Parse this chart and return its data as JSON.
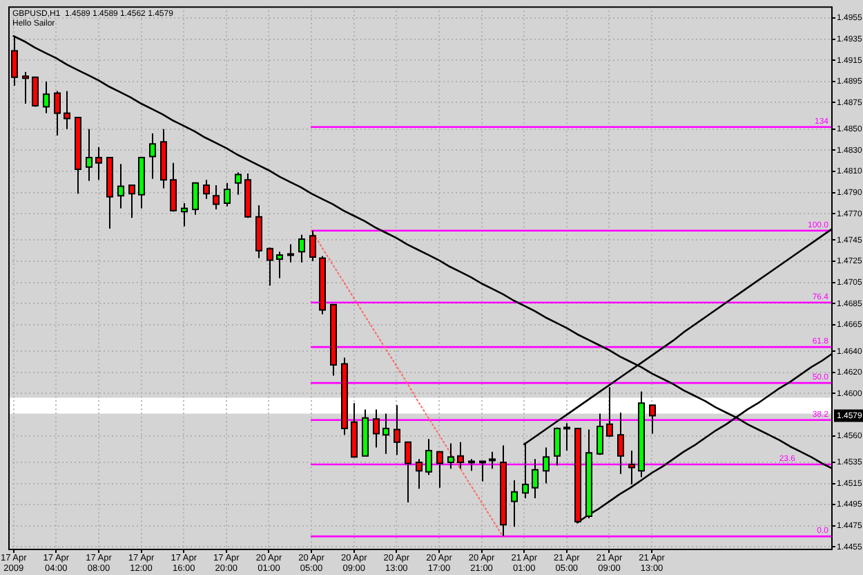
{
  "chart_data": {
    "type": "candlestick",
    "title": "GBPUSD,H1  1.4589 1.4589 1.4562 1.4579",
    "subtitle": "Hello Sailor",
    "categories": [
      "17 Apr 2009",
      null,
      null,
      null,
      "17 Apr 04:00",
      null,
      null,
      null,
      "17 Apr 08:00",
      null,
      null,
      null,
      "17 Apr 12:00",
      null,
      null,
      null,
      "17 Apr 16:00",
      null,
      null,
      null,
      "17 Apr 20:00",
      null,
      null,
      null,
      "20 Apr 01:00",
      null,
      null,
      null,
      "20 Apr 05:00",
      null,
      null,
      null,
      "20 Apr 09:00",
      null,
      null,
      null,
      "20 Apr 13:00",
      null,
      null,
      null,
      "20 Apr 17:00",
      null,
      null,
      null,
      "20 Apr 21:00",
      null,
      null,
      null,
      "21 Apr 01:00",
      null,
      null,
      null,
      "21 Apr 05:00",
      null,
      null,
      null,
      "21 Apr 09:00",
      null,
      null,
      null,
      "21 Apr 13:00",
      null,
      null,
      null,
      null,
      null,
      null,
      null,
      null,
      null,
      null,
      null,
      null,
      null,
      null,
      null,
      null,
      null
    ],
    "ylim": [
      1.4452,
      1.4966
    ],
    "yticks": [
      1.4455,
      1.4475,
      1.4495,
      1.4515,
      1.4535,
      {
        "value": 1.456,
        "label": "1.4560"
      },
      {
        "value": 1.46,
        "label": "1.4600"
      },
      {
        "value": 1.462,
        "label": "1.4620"
      },
      {
        "value": 1.464,
        "label": "1.4640"
      },
      1.4665,
      1.4685,
      1.4705,
      1.4725,
      1.4745,
      {
        "value": 1.477,
        "label": "1.4770"
      },
      {
        "value": 1.479,
        "label": "1.4790"
      },
      {
        "value": 1.481,
        "label": "1.4810"
      },
      {
        "value": 1.483,
        "label": "1.4830"
      },
      {
        "value": 1.485,
        "label": "1.4850"
      },
      1.4875,
      1.4895,
      1.4915,
      1.4935,
      1.4955
    ],
    "grid": true,
    "legend": false,
    "bands": [
      {
        "axis": "y",
        "from": 1.4581,
        "to": 1.4596,
        "color": "#ffffff"
      }
    ],
    "annotations": [
      {
        "text": "1.4579",
        "y": 1.4579
      }
    ],
    "series": [
      {
        "ohlc": [
          [
            1.4924,
            1.4938,
            1.4891,
            1.4899
          ],
          [
            1.49,
            1.4904,
            1.4874,
            1.4898
          ],
          [
            1.4899,
            1.4899,
            1.4871,
            1.4872
          ],
          [
            1.4871,
            1.4895,
            1.4865,
            1.4883
          ],
          [
            1.4884,
            1.4886,
            1.4844,
            1.4865
          ],
          [
            1.4865,
            1.4886,
            1.485,
            1.486
          ],
          [
            1.4861,
            1.4861,
            1.4789,
            1.4812
          ],
          [
            1.4814,
            1.485,
            1.4801,
            1.4823
          ],
          [
            1.4823,
            1.4833,
            1.4802,
            1.4818
          ],
          [
            1.4823,
            1.4823,
            1.4756,
            1.4786
          ],
          [
            1.4787,
            1.4817,
            1.4775,
            1.4796
          ],
          [
            1.4797,
            1.4797,
            1.4766,
            1.4789
          ],
          [
            1.4788,
            1.4823,
            1.4775,
            1.4823
          ],
          [
            1.4824,
            1.4846,
            1.4803,
            1.4836
          ],
          [
            1.4838,
            1.485,
            1.4794,
            1.4802
          ],
          [
            1.4802,
            1.4818,
            1.4772,
            1.4773
          ],
          [
            1.4772,
            1.478,
            1.4758,
            1.4775
          ],
          [
            1.4774,
            1.4799,
            1.4769,
            1.4799
          ],
          [
            1.4797,
            1.4802,
            1.4784,
            1.4789
          ],
          [
            1.4787,
            1.4797,
            1.4774,
            1.4779
          ],
          [
            1.478,
            1.4799,
            1.4777,
            1.4793
          ],
          [
            1.4799,
            1.4809,
            1.4788,
            1.4807
          ],
          [
            1.4802,
            1.4808,
            1.4766,
            1.4767
          ],
          [
            1.4767,
            1.4778,
            1.4728,
            1.4735
          ],
          [
            1.4737,
            1.4738,
            1.4702,
            1.4726
          ],
          [
            1.4727,
            1.4734,
            1.4709,
            1.4731
          ],
          [
            1.4732,
            1.4741,
            1.4724,
            1.4731
          ],
          [
            1.4734,
            1.475,
            1.4724,
            1.4746
          ],
          [
            1.4749,
            1.4754,
            1.4725,
            1.4729
          ],
          [
            1.4728,
            1.473,
            1.4675,
            1.4679
          ],
          [
            1.4684,
            1.4684,
            1.4617,
            1.4627
          ],
          [
            1.4628,
            1.4634,
            1.4561,
            1.4567
          ],
          [
            1.4573,
            1.4591,
            1.454,
            1.454
          ],
          [
            1.4541,
            1.4585,
            1.4541,
            1.4577
          ],
          [
            1.4576,
            1.4585,
            1.4549,
            1.4562
          ],
          [
            1.4561,
            1.4581,
            1.4543,
            1.4567
          ],
          [
            1.4566,
            1.4589,
            1.4542,
            1.4554
          ],
          [
            1.4554,
            1.4554,
            1.4497,
            1.4534
          ],
          [
            1.4535,
            1.4538,
            1.451,
            1.4527
          ],
          [
            1.4526,
            1.4557,
            1.4523,
            1.4546
          ],
          [
            1.4545,
            1.4545,
            1.4511,
            1.4534
          ],
          [
            1.4535,
            1.4553,
            1.4529,
            1.454
          ],
          [
            1.4541,
            1.4554,
            1.4529,
            1.4535
          ],
          [
            1.4536,
            1.4538,
            1.4527,
            1.4535
          ],
          [
            1.4535,
            1.4536,
            1.4517,
            1.4536
          ],
          [
            1.4538,
            1.4545,
            1.4529,
            1.4537
          ],
          [
            1.4535,
            1.4551,
            1.4465,
            1.4476
          ],
          [
            1.4498,
            1.4518,
            1.4474,
            1.4507
          ],
          [
            1.4506,
            1.4552,
            1.4501,
            1.4514
          ],
          [
            1.4511,
            1.4538,
            1.4501,
            1.4528
          ],
          [
            1.4527,
            1.4549,
            1.4515,
            1.454
          ],
          [
            1.4541,
            1.4568,
            1.4532,
            1.4567
          ],
          [
            1.4568,
            1.4572,
            1.4546,
            1.4567
          ],
          [
            1.4567,
            1.4567,
            1.4478,
            1.4479
          ],
          [
            1.4484,
            1.4566,
            1.4482,
            1.4544
          ],
          [
            1.4543,
            1.4581,
            1.4542,
            1.4569
          ],
          [
            1.4571,
            1.4606,
            1.4559,
            1.456
          ],
          [
            1.4561,
            1.4582,
            1.4524,
            1.4541
          ],
          [
            1.4533,
            1.4546,
            1.4514,
            1.453
          ],
          [
            1.4527,
            1.4602,
            1.4521,
            1.4591
          ],
          [
            1.4589,
            1.4589,
            1.4562,
            1.4579
          ],
          null,
          null,
          null,
          null,
          null,
          null,
          null,
          null,
          null,
          null,
          null,
          null,
          null,
          null,
          null,
          null,
          null
        ],
        "colors": [
          "#ff0000",
          "#ff0000",
          "#ff0000",
          "#00ff00",
          "#ff0000",
          "#ff0000",
          "#ff0000",
          "#00ff00",
          "#ff0000",
          "#ff0000",
          "#00ff00",
          "#ff0000",
          "#00ff00",
          "#00ff00",
          "#ff0000",
          "#ff0000",
          "#00ff00",
          "#00ff00",
          "#ff0000",
          "#ff0000",
          "#00ff00",
          "#00ff00",
          "#ff0000",
          "#ff0000",
          "#ff0000",
          "#00ff00",
          "#ff0000",
          "#00ff00",
          "#ff0000",
          "#ff0000",
          "#ff0000",
          "#ff0000",
          "#ff0000",
          "#00ff00",
          "#ff0000",
          "#00ff00",
          "#ff0000",
          "#ff0000",
          "#ff0000",
          "#00ff00",
          "#ff0000",
          "#00ff00",
          "#ff0000",
          "#ff0000",
          "#00ff00",
          "#ff0000",
          "#ff0000",
          "#00ff00",
          "#00ff00",
          "#00ff00",
          "#00ff00",
          "#00ff00",
          "#ff0000",
          "#ff0000",
          "#00ff00",
          "#00ff00",
          "#ff0000",
          "#ff0000",
          "#ff0000",
          "#00ff00",
          "#ff0000",
          null,
          null,
          null,
          null,
          null,
          null,
          null,
          null,
          null,
          null,
          null,
          null,
          null,
          null,
          null,
          null,
          null
        ]
      },
      {
        "type": "line",
        "color": "#000000",
        "values": [
          1.4938,
          1.4933,
          1.4927,
          1.4922,
          1.4917,
          1.4911,
          1.4906,
          1.4901,
          1.4896,
          1.489,
          1.4885,
          1.488,
          1.4874,
          1.4869,
          1.4864,
          1.4858,
          1.4853,
          1.4848,
          1.4842,
          1.4837,
          1.4832,
          1.4826,
          1.4821,
          1.4816,
          1.4811,
          1.4805,
          1.48,
          1.4795,
          1.4789,
          1.4784,
          1.4779,
          1.4773,
          1.4768,
          1.4763,
          1.4757,
          1.4752,
          1.4747,
          1.4741,
          1.4736,
          1.4731,
          1.4726,
          1.472,
          1.4715,
          1.471,
          1.4704,
          1.4699,
          1.4694,
          1.4688,
          1.4683,
          1.4678,
          1.4672,
          1.4667,
          1.4662,
          1.4656,
          1.4651,
          1.4646,
          1.4641,
          1.4635,
          1.463,
          1.4625,
          1.4619,
          1.4614,
          1.4609,
          1.4603,
          1.4598,
          1.4593,
          1.4587,
          1.4582,
          1.4577,
          1.4571,
          1.4566,
          1.4561,
          1.4556,
          1.455,
          1.4545,
          1.454,
          1.4534,
          1.4529
        ]
      },
      {
        "type": "line",
        "color": "#000000",
        "values": [
          null,
          null,
          null,
          null,
          null,
          null,
          null,
          null,
          null,
          null,
          null,
          null,
          null,
          null,
          null,
          null,
          null,
          null,
          null,
          null,
          null,
          null,
          null,
          null,
          null,
          null,
          null,
          null,
          null,
          null,
          null,
          null,
          null,
          null,
          null,
          null,
          null,
          null,
          null,
          null,
          null,
          null,
          null,
          null,
          null,
          null,
          null,
          null,
          1.4552,
          1.4559,
          1.4566,
          1.4573,
          1.458,
          1.4587,
          1.4594,
          1.4601,
          1.4608,
          1.4615,
          1.4622,
          1.4629,
          1.4636,
          1.4643,
          1.465,
          1.4658,
          1.4665,
          1.4672,
          1.4679,
          1.4686,
          1.4693,
          1.47,
          1.4707,
          1.4714,
          1.4721,
          1.4728,
          1.4735,
          1.4742,
          1.4749,
          1.4756
        ]
      },
      {
        "type": "line",
        "color": "#000000",
        "values": [
          null,
          null,
          null,
          null,
          null,
          null,
          null,
          null,
          null,
          null,
          null,
          null,
          null,
          null,
          null,
          null,
          null,
          null,
          null,
          null,
          null,
          null,
          null,
          null,
          null,
          null,
          null,
          null,
          null,
          null,
          null,
          null,
          null,
          null,
          null,
          null,
          null,
          null,
          null,
          null,
          null,
          null,
          null,
          null,
          null,
          null,
          null,
          null,
          null,
          null,
          null,
          null,
          null,
          1.4478,
          1.4485,
          1.4491,
          1.4498,
          1.4505,
          1.4511,
          1.4518,
          1.4525,
          1.4531,
          1.4538,
          1.4545,
          1.4551,
          1.4558,
          1.4565,
          1.4571,
          1.4578,
          1.4585,
          1.4591,
          1.4598,
          1.4605,
          1.4611,
          1.4618,
          1.4625,
          1.4631,
          1.4638
        ]
      },
      {
        "type": "line",
        "color": "#ff6666",
        "line_style": "dotted",
        "values": [
          null,
          null,
          null,
          null,
          null,
          null,
          null,
          null,
          null,
          null,
          null,
          null,
          null,
          null,
          null,
          null,
          null,
          null,
          null,
          null,
          null,
          null,
          null,
          null,
          null,
          null,
          null,
          null,
          1.4754,
          1.4738,
          1.4722,
          1.4706,
          1.469,
          1.4674,
          1.4658,
          1.4642,
          1.4626,
          1.461,
          1.4593,
          1.4577,
          1.4561,
          1.4545,
          1.4529,
          1.4513,
          1.4497,
          1.4481,
          1.4465,
          null,
          null,
          null,
          null,
          null,
          null,
          null,
          null,
          null,
          null,
          null,
          null,
          null,
          null,
          null,
          null,
          null,
          null,
          null,
          null,
          null,
          null,
          null,
          null,
          null,
          null,
          null,
          null,
          null,
          null,
          null
        ]
      },
      {
        "type": "line",
        "name": "0.0",
        "color": "#ff00ff",
        "values": [
          null,
          null,
          null,
          null,
          null,
          null,
          null,
          null,
          null,
          null,
          null,
          null,
          null,
          null,
          null,
          null,
          null,
          null,
          null,
          null,
          null,
          null,
          null,
          null,
          null,
          null,
          null,
          null,
          1.4465,
          1.4465,
          1.4465,
          1.4465,
          1.4465,
          1.4465,
          1.4465,
          1.4465,
          1.4465,
          1.4465,
          1.4465,
          1.4465,
          1.4465,
          1.4465,
          1.4465,
          1.4465,
          1.4465,
          1.4465,
          1.4465,
          1.4465,
          1.4465,
          1.4465,
          1.4465,
          1.4465,
          1.4465,
          1.4465,
          1.4465,
          1.4465,
          1.4465,
          1.4465,
          1.4465,
          1.4465,
          1.4465,
          1.4465,
          1.4465,
          1.4465,
          1.4465,
          1.4465,
          1.4465,
          1.4465,
          1.4465,
          1.4465,
          1.4465,
          1.4465,
          1.4465,
          1.4465,
          1.4465,
          1.4465,
          1.4465,
          1.4465
        ]
      },
      {
        "type": "line",
        "name": "23.6",
        "color": "#ff00ff",
        "values": [
          null,
          null,
          null,
          null,
          null,
          null,
          null,
          null,
          null,
          null,
          null,
          null,
          null,
          null,
          null,
          null,
          null,
          null,
          null,
          null,
          null,
          null,
          null,
          null,
          null,
          null,
          null,
          null,
          1.4533,
          1.4533,
          1.4533,
          1.4533,
          1.4533,
          1.4533,
          1.4533,
          1.4533,
          1.4533,
          1.4533,
          1.4533,
          1.4533,
          1.4533,
          1.4533,
          1.4533,
          1.4533,
          1.4533,
          1.4533,
          1.4533,
          1.4533,
          1.4533,
          1.4533,
          1.4533,
          1.4533,
          1.4533,
          1.4533,
          1.4533,
          1.4533,
          1.4533,
          1.4533,
          1.4533,
          1.4533,
          1.4533,
          1.4533,
          1.4533,
          1.4533,
          1.4533,
          1.4533,
          1.4533,
          1.4533,
          1.4533,
          1.4533,
          1.4533,
          1.4533,
          1.4533,
          1.4533,
          1.4533,
          1.4533,
          1.4533,
          1.4533
        ]
      },
      {
        "type": "line",
        "name": "38.2",
        "color": "#ff00ff",
        "values": [
          null,
          null,
          null,
          null,
          null,
          null,
          null,
          null,
          null,
          null,
          null,
          null,
          null,
          null,
          null,
          null,
          null,
          null,
          null,
          null,
          null,
          null,
          null,
          null,
          null,
          null,
          null,
          null,
          1.4575,
          1.4575,
          1.4575,
          1.4575,
          1.4575,
          1.4575,
          1.4575,
          1.4575,
          1.4575,
          1.4575,
          1.4575,
          1.4575,
          1.4575,
          1.4575,
          1.4575,
          1.4575,
          1.4575,
          1.4575,
          1.4575,
          1.4575,
          1.4575,
          1.4575,
          1.4575,
          1.4575,
          1.4575,
          1.4575,
          1.4575,
          1.4575,
          1.4575,
          1.4575,
          1.4575,
          1.4575,
          1.4575,
          1.4575,
          1.4575,
          1.4575,
          1.4575,
          1.4575,
          1.4575,
          1.4575,
          1.4575,
          1.4575,
          1.4575,
          1.4575,
          1.4575,
          1.4575,
          1.4575,
          1.4575,
          1.4575,
          1.4575
        ]
      },
      {
        "type": "line",
        "name": "50.0",
        "color": "#ff00ff",
        "values": [
          null,
          null,
          null,
          null,
          null,
          null,
          null,
          null,
          null,
          null,
          null,
          null,
          null,
          null,
          null,
          null,
          null,
          null,
          null,
          null,
          null,
          null,
          null,
          null,
          null,
          null,
          null,
          null,
          1.461,
          1.461,
          1.461,
          1.461,
          1.461,
          1.461,
          1.461,
          1.461,
          1.461,
          1.461,
          1.461,
          1.461,
          1.461,
          1.461,
          1.461,
          1.461,
          1.461,
          1.461,
          1.461,
          1.461,
          1.461,
          1.461,
          1.461,
          1.461,
          1.461,
          1.461,
          1.461,
          1.461,
          1.461,
          1.461,
          1.461,
          1.461,
          1.461,
          1.461,
          1.461,
          1.461,
          1.461,
          1.461,
          1.461,
          1.461,
          1.461,
          1.461,
          1.461,
          1.461,
          1.461,
          1.461,
          1.461,
          1.461,
          1.461,
          1.461
        ]
      },
      {
        "type": "line",
        "name": "61.8",
        "color": "#ff00ff",
        "values": [
          null,
          null,
          null,
          null,
          null,
          null,
          null,
          null,
          null,
          null,
          null,
          null,
          null,
          null,
          null,
          null,
          null,
          null,
          null,
          null,
          null,
          null,
          null,
          null,
          null,
          null,
          null,
          null,
          1.4644,
          1.4644,
          1.4644,
          1.4644,
          1.4644,
          1.4644,
          1.4644,
          1.4644,
          1.4644,
          1.4644,
          1.4644,
          1.4644,
          1.4644,
          1.4644,
          1.4644,
          1.4644,
          1.4644,
          1.4644,
          1.4644,
          1.4644,
          1.4644,
          1.4644,
          1.4644,
          1.4644,
          1.4644,
          1.4644,
          1.4644,
          1.4644,
          1.4644,
          1.4644,
          1.4644,
          1.4644,
          1.4644,
          1.4644,
          1.4644,
          1.4644,
          1.4644,
          1.4644,
          1.4644,
          1.4644,
          1.4644,
          1.4644,
          1.4644,
          1.4644,
          1.4644,
          1.4644,
          1.4644,
          1.4644,
          1.4644,
          1.4644
        ]
      },
      {
        "type": "line",
        "name": "76.4",
        "color": "#ff00ff",
        "values": [
          null,
          null,
          null,
          null,
          null,
          null,
          null,
          null,
          null,
          null,
          null,
          null,
          null,
          null,
          null,
          null,
          null,
          null,
          null,
          null,
          null,
          null,
          null,
          null,
          null,
          null,
          null,
          null,
          1.4686,
          1.4686,
          1.4686,
          1.4686,
          1.4686,
          1.4686,
          1.4686,
          1.4686,
          1.4686,
          1.4686,
          1.4686,
          1.4686,
          1.4686,
          1.4686,
          1.4686,
          1.4686,
          1.4686,
          1.4686,
          1.4686,
          1.4686,
          1.4686,
          1.4686,
          1.4686,
          1.4686,
          1.4686,
          1.4686,
          1.4686,
          1.4686,
          1.4686,
          1.4686,
          1.4686,
          1.4686,
          1.4686,
          1.4686,
          1.4686,
          1.4686,
          1.4686,
          1.4686,
          1.4686,
          1.4686,
          1.4686,
          1.4686,
          1.4686,
          1.4686,
          1.4686,
          1.4686,
          1.4686,
          1.4686,
          1.4686,
          1.4686
        ]
      },
      {
        "type": "line",
        "name": "100.0",
        "color": "#ff00ff",
        "values": [
          null,
          null,
          null,
          null,
          null,
          null,
          null,
          null,
          null,
          null,
          null,
          null,
          null,
          null,
          null,
          null,
          null,
          null,
          null,
          null,
          null,
          null,
          null,
          null,
          null,
          null,
          null,
          null,
          1.4754,
          1.4754,
          1.4754,
          1.4754,
          1.4754,
          1.4754,
          1.4754,
          1.4754,
          1.4754,
          1.4754,
          1.4754,
          1.4754,
          1.4754,
          1.4754,
          1.4754,
          1.4754,
          1.4754,
          1.4754,
          1.4754,
          1.4754,
          1.4754,
          1.4754,
          1.4754,
          1.4754,
          1.4754,
          1.4754,
          1.4754,
          1.4754,
          1.4754,
          1.4754,
          1.4754,
          1.4754,
          1.4754,
          1.4754,
          1.4754,
          1.4754,
          1.4754,
          1.4754,
          1.4754,
          1.4754,
          1.4754,
          1.4754,
          1.4754,
          1.4754,
          1.4754,
          1.4754,
          1.4754,
          1.4754,
          1.4754,
          1.4754
        ]
      },
      {
        "type": "line",
        "name": "134",
        "color": "#ff00ff",
        "values": [
          null,
          null,
          null,
          null,
          null,
          null,
          null,
          null,
          null,
          null,
          null,
          null,
          null,
          null,
          null,
          null,
          null,
          null,
          null,
          null,
          null,
          null,
          null,
          null,
          null,
          null,
          null,
          null,
          1.4852,
          1.4852,
          1.4852,
          1.4852,
          1.4852,
          1.4852,
          1.4852,
          1.4852,
          1.4852,
          1.4852,
          1.4852,
          1.4852,
          1.4852,
          1.4852,
          1.4852,
          1.4852,
          1.4852,
          1.4852,
          1.4852,
          1.4852,
          1.4852,
          1.4852,
          1.4852,
          1.4852,
          1.4852,
          1.4852,
          1.4852,
          1.4852,
          1.4852,
          1.4852,
          1.4852,
          1.4852,
          1.4852,
          1.4852,
          1.4852,
          1.4852,
          1.4852,
          1.4852,
          1.4852,
          1.4852,
          1.4852,
          1.4852,
          1.4852,
          1.4852,
          1.4852,
          1.4852,
          1.4852,
          1.4852,
          1.4852,
          1.4852
        ]
      }
    ]
  }
}
